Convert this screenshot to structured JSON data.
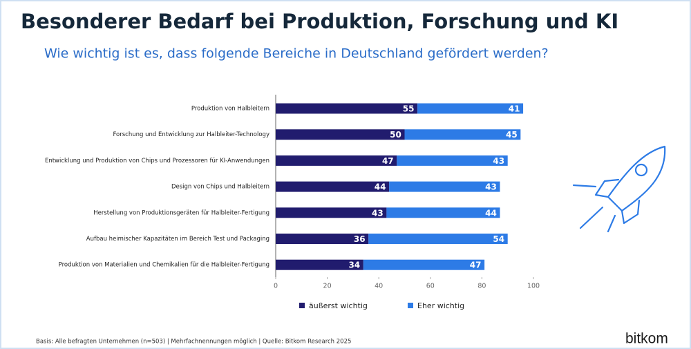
{
  "chart_data": {
    "type": "bar",
    "orientation": "horizontal",
    "stacked": true,
    "title": "Besonderer Bedarf bei Produktion, Forschung und KI",
    "subtitle": "Wie wichtig ist es, dass folgende Bereiche in Deutschland gefördert werden?",
    "categories": [
      "Produktion von Halbleitern",
      "Forschung und Entwicklung zur Halbleiter-Technology",
      "Entwicklung und Produktion von Chips und Prozessoren für KI-Anwendungen",
      "Design von Chips und Halbleitern",
      "Herstellung von Produktionsgeräten für Halbleiter-Fertigung",
      "Aufbau heimischer Kapazitäten im Bereich Test und Packaging",
      "Produktion von Materialien und Chemikalien für die Halbleiter-Fertigung"
    ],
    "series": [
      {
        "name": "äußerst wichtig",
        "color": "#211c6e",
        "values": [
          55,
          50,
          47,
          44,
          43,
          36,
          34
        ]
      },
      {
        "name": "Eher wichtig",
        "color": "#2d7be6",
        "values": [
          41,
          45,
          43,
          43,
          44,
          54,
          47
        ]
      }
    ],
    "xlim": [
      0,
      100
    ],
    "xticks": [
      0,
      20,
      40,
      60,
      80,
      100
    ],
    "note": "Basis: Alle befragten Unternehmen (n=503) | Mehrfachnennungen möglich | Quelle: Bitkom Research 2025",
    "logo": "bitkom"
  }
}
